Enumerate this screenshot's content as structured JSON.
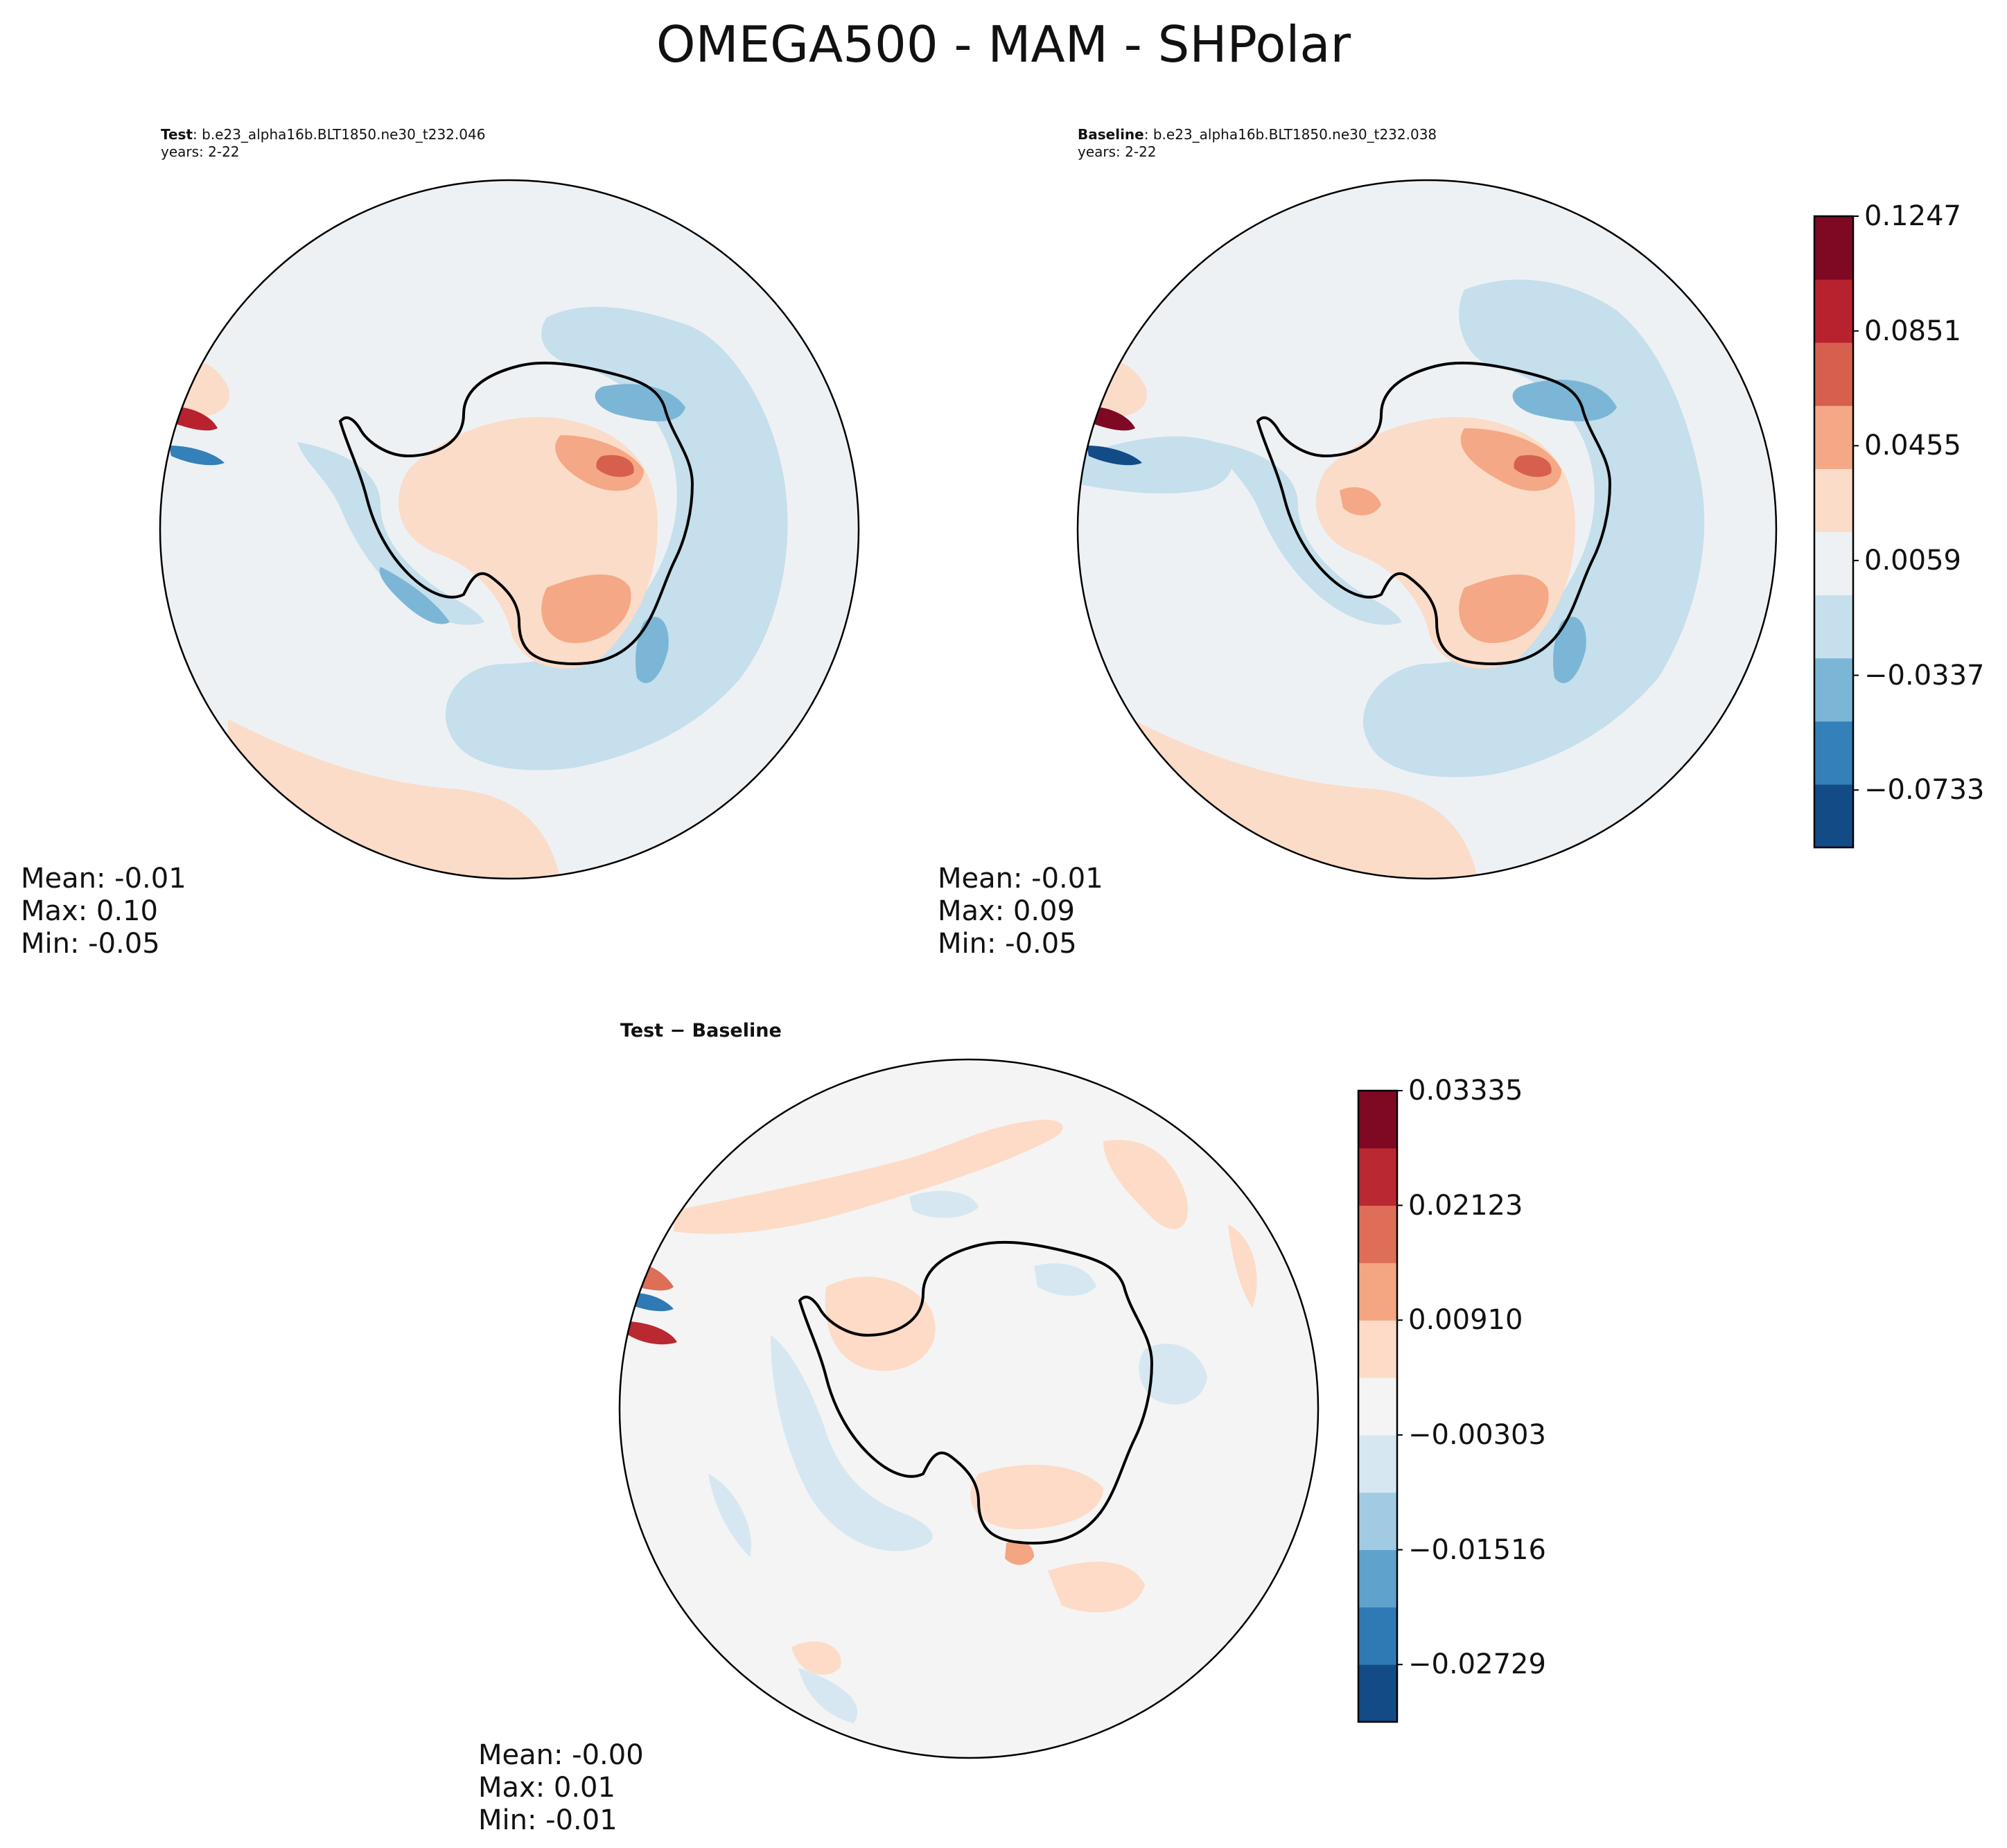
{
  "figure": {
    "title": "OMEGA500 - MAM - SHPolar"
  },
  "panels": {
    "test": {
      "label": "Test",
      "case": "b.e23_alpha16b.BLT1850.ne30_t232.046",
      "years": "years: 2-22",
      "stats": {
        "mean": "Mean: -0.01",
        "max": "Max:  0.10",
        "min": "Min: -0.05"
      }
    },
    "baseline": {
      "label": "Baseline",
      "case": "b.e23_alpha16b.BLT1850.ne30_t232.038",
      "years": "years: 2-22",
      "stats": {
        "mean": "Mean: -0.01",
        "max": "Max:  0.09",
        "min": "Min: -0.05"
      }
    },
    "diff": {
      "label": "Test − Baseline",
      "stats": {
        "mean": "Mean: -0.00",
        "max": "Max:  0.01",
        "min": "Min: -0.01"
      }
    }
  },
  "colorbars": {
    "main": {
      "colors": [
        "#134b87",
        "#3480b9",
        "#7bb6d6",
        "#c5dfec",
        "#eef1f4",
        "#fadcc8",
        "#f4a885",
        "#d6604d",
        "#b8222e",
        "#7f0823"
      ],
      "ticks": [
        "0.1247",
        "0.0851",
        "0.0455",
        "0.0059",
        "−0.0337",
        "−0.0733"
      ],
      "tick_values": [
        0.1247,
        0.0851,
        0.0455,
        0.0059,
        -0.0337,
        -0.0733
      ],
      "vmin": -0.0931,
      "vmax": 0.1247
    },
    "diff": {
      "colors": [
        "#134b87",
        "#2f79b5",
        "#5fa2cb",
        "#a1cbe2",
        "#d6e7f1",
        "#f4f4f4",
        "#fddbc7",
        "#f4a582",
        "#de6e58",
        "#ba2832",
        "#7f0823"
      ],
      "ticks": [
        "0.03335",
        "0.02123",
        "0.00910",
        "−0.00303",
        "−0.01516",
        "−0.02729"
      ],
      "tick_values": [
        0.03335,
        0.02123,
        0.0091,
        -0.00303,
        -0.01516,
        -0.02729
      ],
      "vmin": -0.03335,
      "vmax": 0.03335
    }
  }
}
